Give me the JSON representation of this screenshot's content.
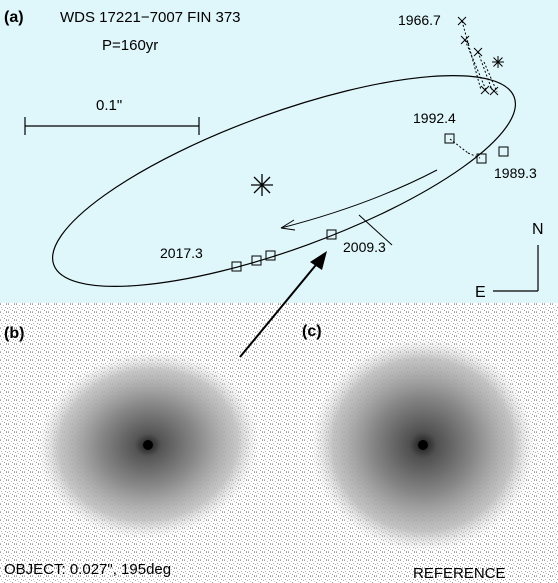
{
  "colors": {
    "panel_a_bg": "#dff6fa",
    "ink": "#000000",
    "speckle_background": "#ffffff",
    "speckle_noise": "#a8a8a8"
  },
  "panel_a": {
    "label": "(a)",
    "title": "WDS 17221−7007  FIN 373",
    "period": "P=160yr",
    "scale_label": "0.1\"",
    "compass": {
      "north": "N",
      "east": "E"
    },
    "epochs": [
      {
        "id": "e1966",
        "text": "1966.7"
      },
      {
        "id": "e1992",
        "text": "1992.4"
      },
      {
        "id": "e1989",
        "text": "1989.3"
      },
      {
        "id": "e2017",
        "text": "2017.3"
      },
      {
        "id": "e2009",
        "text": "2009.3"
      }
    ],
    "primary_icon": "asterisk-star-icon",
    "measurement_icons": [
      "square-marker-icon",
      "cross-marker-icon"
    ]
  },
  "panel_b": {
    "label": "(b)",
    "caption": "OBJECT: 0.027\", 195deg"
  },
  "panel_c": {
    "label": "(c)",
    "caption": "REFERENCE"
  }
}
